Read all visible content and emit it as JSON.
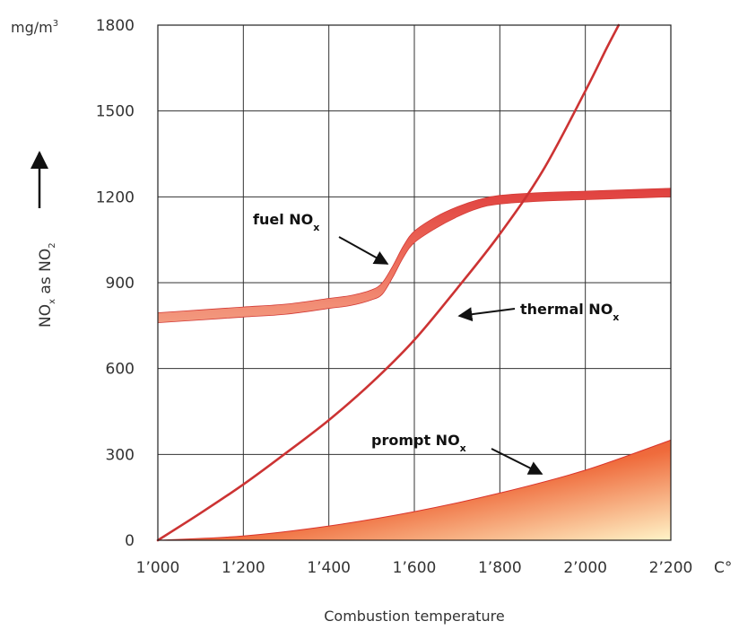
{
  "chart_data": {
    "type": "line",
    "xlabel": "Combustion temperature",
    "x_unit": "C°",
    "ylabel": "NO",
    "ylabel_sub_x": "x",
    "ylabel_as": "as NO",
    "ylabel_sub_2": "2",
    "y_unit": "mg/m",
    "y_unit_sup": "3",
    "xlim": [
      1000,
      2200
    ],
    "ylim": [
      0,
      1800
    ],
    "x_ticks": [
      1000,
      1200,
      1400,
      1600,
      1800,
      2000,
      2200
    ],
    "x_tick_labels": [
      "1’000",
      "1’200",
      "1’400",
      "1’600",
      "1’800",
      "2’000",
      "2’200"
    ],
    "y_ticks": [
      0,
      300,
      600,
      900,
      1200,
      1500,
      1800
    ],
    "y_tick_labels": [
      "0",
      "300",
      "600",
      "900",
      "1200",
      "1500",
      "1800"
    ],
    "grid": true,
    "series": [
      {
        "name": "fuel NO",
        "name_sub": "x",
        "style": "band",
        "x": [
          1000,
          1100,
          1200,
          1300,
          1400,
          1450,
          1500,
          1525,
          1550,
          1575,
          1600,
          1650,
          1700,
          1750,
          1800,
          1900,
          2000,
          2100,
          2200
        ],
        "y_low": [
          760,
          770,
          780,
          790,
          810,
          820,
          840,
          860,
          920,
          990,
          1040,
          1090,
          1130,
          1160,
          1175,
          1185,
          1190,
          1195,
          1200
        ],
        "y_high": [
          795,
          805,
          815,
          825,
          845,
          855,
          875,
          900,
          960,
          1030,
          1080,
          1130,
          1165,
          1190,
          1205,
          1215,
          1220,
          1225,
          1230
        ],
        "color": "#d94040"
      },
      {
        "name": "thermal NO",
        "name_sub": "x",
        "style": "line",
        "x": [
          1000,
          1100,
          1200,
          1300,
          1400,
          1500,
          1600,
          1700,
          1800,
          1900,
          2000,
          2050,
          2078
        ],
        "y": [
          0,
          95,
          195,
          305,
          420,
          550,
          700,
          880,
          1070,
          1290,
          1570,
          1720,
          1800
        ],
        "color": "#cc3333"
      },
      {
        "name": "prompt NO",
        "name_sub": "x",
        "style": "area",
        "x": [
          1000,
          1200,
          1400,
          1600,
          1800,
          2000,
          2200
        ],
        "y": [
          0,
          15,
          50,
          100,
          165,
          245,
          350
        ],
        "color": "#e8453a"
      }
    ],
    "annotations": [
      {
        "text": "fuel NO",
        "sub": "x",
        "points_to": "fuel NO"
      },
      {
        "text": "thermal NO",
        "sub": "x",
        "points_to": "thermal NO"
      },
      {
        "text": "prompt NO",
        "sub": "x",
        "points_to": "prompt NO"
      }
    ]
  }
}
